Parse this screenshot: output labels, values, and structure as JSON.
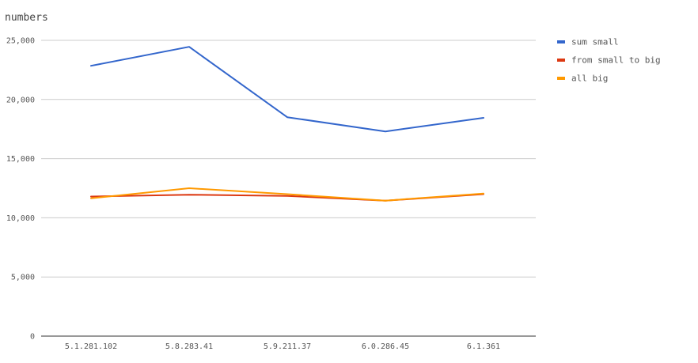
{
  "chart_data": {
    "type": "line",
    "title": "numbers",
    "xlabel": "",
    "ylabel": "",
    "categories": [
      "5.1.281.102",
      "5.8.283.41",
      "5.9.211.37",
      "6.0.286.45",
      "6.1.361"
    ],
    "ylim": [
      0,
      25000
    ],
    "y_ticks": [
      0,
      5000,
      10000,
      15000,
      20000,
      25000
    ],
    "y_tick_labels": [
      "0",
      "5,000",
      "10,000",
      "15,000",
      "20,000",
      "25,000"
    ],
    "grid": true,
    "legend_position": "right",
    "series": [
      {
        "name": "sum small",
        "color": "#3366cc",
        "values": [
          22850,
          24450,
          18500,
          17300,
          18450
        ]
      },
      {
        "name": "from small to big",
        "color": "#dc3912",
        "values": [
          11800,
          11950,
          11850,
          11450,
          12000
        ]
      },
      {
        "name": "all big",
        "color": "#ff9900",
        "values": [
          11650,
          12500,
          12000,
          11450,
          12050
        ]
      }
    ]
  }
}
